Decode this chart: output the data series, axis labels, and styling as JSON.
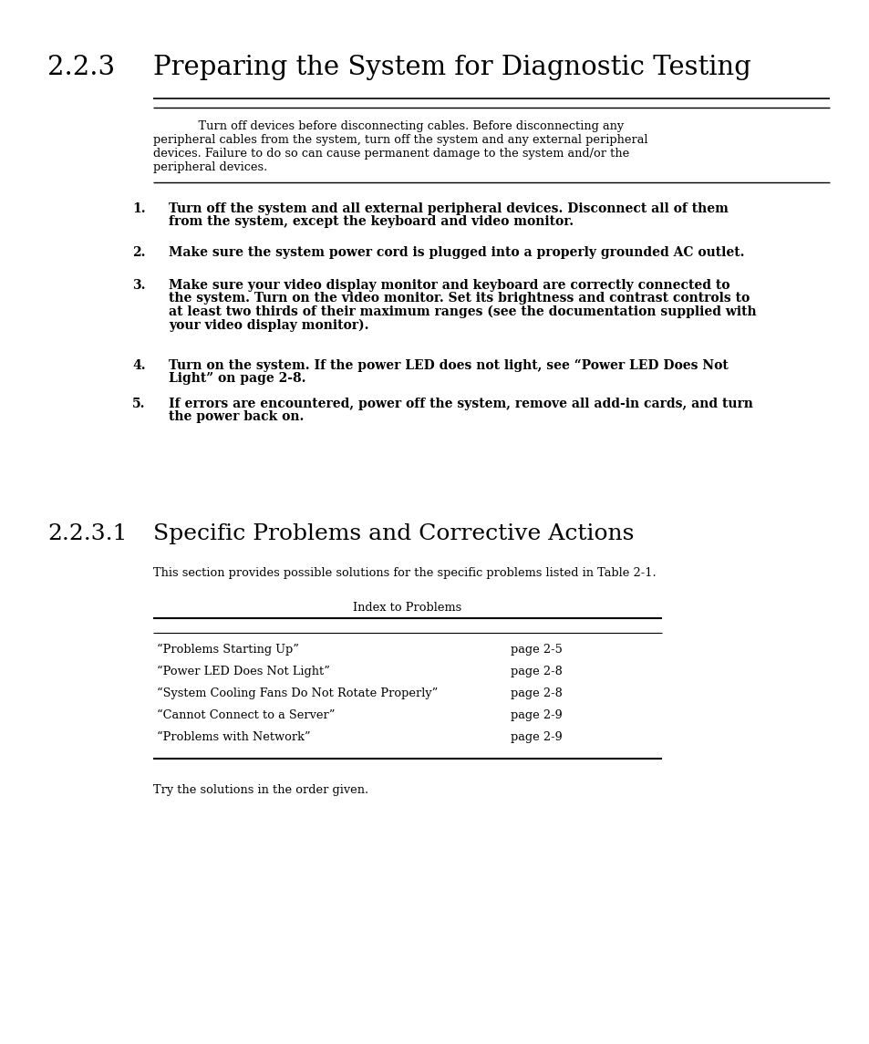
{
  "bg_color": "#ffffff",
  "section_number_1": "2.2.3",
  "section_title_1": "Preparing the System for Diagnostic Testing",
  "section_number_2": "2.2.3.1",
  "section_title_2": "Specific Problems and Corrective Actions",
  "caution_lines": [
    "            Turn off devices before disconnecting cables. Before disconnecting any",
    "peripheral cables from the system, turn off the system and any external peripheral",
    "devices. Failure to do so can cause permanent damage to the system and/or the",
    "peripheral devices."
  ],
  "numbered_items": [
    {
      "num": 1,
      "lines": [
        "Turn off the system and all external peripheral devices. Disconnect all of them",
        "from the system, except the keyboard and video monitor."
      ]
    },
    {
      "num": 2,
      "lines": [
        "Make sure the system power cord is plugged into a properly grounded AC outlet."
      ]
    },
    {
      "num": 3,
      "lines": [
        "Make sure your video display monitor and keyboard are correctly connected to",
        "the system. Turn on the video monitor. Set its brightness and contrast controls to",
        "at least two thirds of their maximum ranges (see the documentation supplied with",
        "your video display monitor)."
      ]
    },
    {
      "num": 4,
      "lines": [
        "Turn on the system. If the power LED does not light, see “Power LED Does Not",
        "Light” on page 2-8."
      ]
    },
    {
      "num": 5,
      "lines": [
        "If errors are encountered, power off the system, remove all add-in cards, and turn",
        "the power back on."
      ]
    }
  ],
  "section2_intro": "This section provides possible solutions for the specific problems listed in Table 2-1.",
  "table_caption": "Index to Problems",
  "table_rows": [
    [
      "“Problems Starting Up”",
      "page 2-5"
    ],
    [
      "“Power LED Does Not Light”",
      "page 2-8"
    ],
    [
      "“System Cooling Fans Do Not Rotate Properly”",
      "page 2-8"
    ],
    [
      "“Cannot Connect to a Server”",
      "page 2-9"
    ],
    [
      "“Problems with Network”",
      "page 2-9"
    ]
  ],
  "footer_text": "Try the solutions in the order given."
}
